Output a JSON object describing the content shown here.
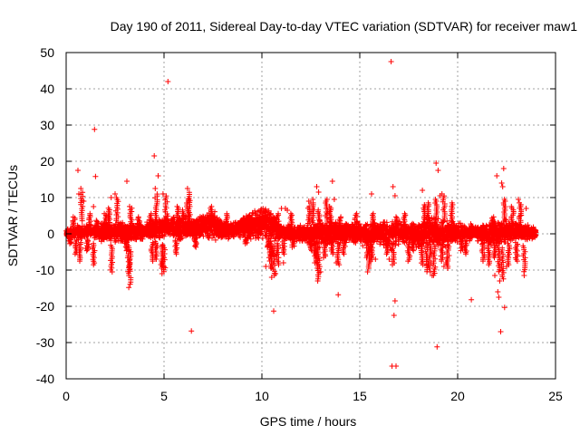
{
  "chart_data": {
    "type": "scatter",
    "title": "Day 190 of 2011, Sidereal Day-to-day VTEC variation (SDTVAR) for receiver maw1",
    "xlabel": "GPS time / hours",
    "ylabel": "SDTVAR / TECUs",
    "xlim": [
      0,
      25
    ],
    "ylim": [
      -40,
      50
    ],
    "xticks": [
      "0",
      "5",
      "10",
      "15",
      "20",
      "25"
    ],
    "yticks": [
      "50",
      "40",
      "30",
      "20",
      "10",
      "0",
      "-10",
      "-20",
      "-30",
      "-40"
    ],
    "grid": true,
    "marker": "+",
    "series_color": "#ff0000",
    "x_data_range": [
      0,
      24
    ],
    "band_envelope": [
      [
        0.0,
        -1.2,
        1.5
      ],
      [
        0.5,
        -1.5,
        2.2
      ],
      [
        1.0,
        -1.3,
        2.5
      ],
      [
        1.5,
        -1.6,
        2.8
      ],
      [
        2.0,
        -2.0,
        3.0
      ],
      [
        2.5,
        -2.2,
        2.8
      ],
      [
        3.0,
        -2.5,
        3.2
      ],
      [
        3.5,
        -2.0,
        2.6
      ],
      [
        4.0,
        -1.5,
        3.0
      ],
      [
        4.5,
        -1.8,
        4.5
      ],
      [
        5.0,
        -1.2,
        5.0
      ],
      [
        5.5,
        -1.5,
        4.5
      ],
      [
        6.0,
        -2.0,
        4.0
      ],
      [
        6.5,
        -1.5,
        4.2
      ],
      [
        7.0,
        -1.0,
        5.5
      ],
      [
        7.5,
        -1.8,
        6.0
      ],
      [
        8.0,
        -1.5,
        4.0
      ],
      [
        8.5,
        -1.2,
        3.2
      ],
      [
        9.0,
        -1.0,
        4.5
      ],
      [
        9.5,
        -1.5,
        6.5
      ],
      [
        10.0,
        -1.5,
        7.5
      ],
      [
        10.5,
        -2.5,
        7.0
      ],
      [
        11.0,
        -1.5,
        2.5
      ],
      [
        11.5,
        -2.0,
        2.2
      ],
      [
        12.0,
        -2.5,
        2.5
      ],
      [
        12.5,
        -3.0,
        3.0
      ],
      [
        13.0,
        -3.5,
        3.0
      ],
      [
        13.5,
        -3.0,
        3.5
      ],
      [
        14.0,
        -2.5,
        2.8
      ],
      [
        14.5,
        -2.0,
        3.0
      ],
      [
        15.0,
        -3.0,
        3.5
      ],
      [
        15.5,
        -3.5,
        3.0
      ],
      [
        16.0,
        -2.5,
        3.2
      ],
      [
        16.5,
        -4.5,
        3.5
      ],
      [
        17.0,
        -3.0,
        3.5
      ],
      [
        17.5,
        -2.5,
        3.0
      ],
      [
        18.0,
        -4.0,
        3.2
      ],
      [
        18.5,
        -3.0,
        4.5
      ],
      [
        19.0,
        -3.5,
        4.0
      ],
      [
        19.5,
        -3.0,
        3.5
      ],
      [
        20.0,
        -2.5,
        3.2
      ],
      [
        20.5,
        -2.0,
        2.5
      ],
      [
        21.0,
        -2.0,
        2.8
      ],
      [
        21.5,
        -2.5,
        3.0
      ],
      [
        22.0,
        -3.0,
        3.5
      ],
      [
        22.5,
        -2.5,
        3.5
      ],
      [
        23.0,
        -2.0,
        3.2
      ],
      [
        23.5,
        -1.8,
        2.8
      ],
      [
        24.0,
        -1.5,
        2.0
      ]
    ],
    "spikes": [
      [
        0.2,
        -3
      ],
      [
        0.5,
        -6
      ],
      [
        0.7,
        -8
      ],
      [
        1.1,
        -5
      ],
      [
        1.4,
        -9
      ],
      [
        2.3,
        -10.5
      ],
      [
        3.1,
        -5
      ],
      [
        3.2,
        -11
      ],
      [
        3.25,
        -14.5
      ],
      [
        4.4,
        -8
      ],
      [
        4.6,
        -7
      ],
      [
        4.9,
        -10
      ],
      [
        5.0,
        -11
      ],
      [
        5.6,
        -6
      ],
      [
        6.6,
        -4
      ],
      [
        9.2,
        -3
      ],
      [
        10.3,
        -4
      ],
      [
        10.4,
        -7
      ],
      [
        10.5,
        -10
      ],
      [
        10.6,
        -12
      ],
      [
        10.8,
        -9
      ],
      [
        11.1,
        -6
      ],
      [
        11.6,
        -4
      ],
      [
        12.5,
        -5
      ],
      [
        12.7,
        -7
      ],
      [
        12.8,
        -10
      ],
      [
        12.9,
        -13
      ],
      [
        13.2,
        -7
      ],
      [
        13.6,
        -6
      ],
      [
        13.9,
        -9
      ],
      [
        14.2,
        -6
      ],
      [
        15.4,
        -7
      ],
      [
        15.5,
        -10
      ],
      [
        15.6,
        -8
      ],
      [
        16.4,
        -6
      ],
      [
        16.7,
        -9
      ],
      [
        17.5,
        -8
      ],
      [
        17.7,
        -5
      ],
      [
        18.2,
        -9
      ],
      [
        18.4,
        -11
      ],
      [
        18.6,
        -10
      ],
      [
        18.8,
        -12
      ],
      [
        19.2,
        -8
      ],
      [
        19.5,
        -10
      ],
      [
        20.2,
        -5
      ],
      [
        20.4,
        -6
      ],
      [
        21.3,
        -8
      ],
      [
        21.6,
        -9
      ],
      [
        21.9,
        -7
      ],
      [
        22.1,
        -11
      ],
      [
        22.3,
        -13
      ],
      [
        22.6,
        -9
      ],
      [
        23.0,
        -8
      ],
      [
        23.4,
        -11
      ],
      [
        0.4,
        5
      ],
      [
        0.8,
        12
      ],
      [
        1.2,
        6
      ],
      [
        1.6,
        4
      ],
      [
        2.0,
        6
      ],
      [
        2.2,
        7.5
      ],
      [
        2.6,
        10.5
      ],
      [
        3.3,
        8
      ],
      [
        3.7,
        5
      ],
      [
        4.3,
        6
      ],
      [
        4.6,
        11.5
      ],
      [
        5.1,
        11
      ],
      [
        5.7,
        8
      ],
      [
        6.0,
        7
      ],
      [
        6.2,
        10
      ],
      [
        6.3,
        12
      ],
      [
        7.4,
        8
      ],
      [
        8.2,
        6
      ],
      [
        10.8,
        6
      ],
      [
        11.5,
        6
      ],
      [
        12.4,
        8
      ],
      [
        12.6,
        9
      ],
      [
        12.9,
        7
      ],
      [
        13.3,
        10
      ],
      [
        13.5,
        8
      ],
      [
        14.0,
        5
      ],
      [
        14.8,
        6
      ],
      [
        15.7,
        6
      ],
      [
        16.9,
        5
      ],
      [
        17.3,
        6
      ],
      [
        18.3,
        8
      ],
      [
        18.5,
        9
      ],
      [
        18.9,
        10
      ],
      [
        19.3,
        11
      ],
      [
        19.7,
        9
      ],
      [
        21.8,
        5
      ],
      [
        22.4,
        10
      ],
      [
        22.8,
        8
      ],
      [
        23.2,
        9
      ]
    ],
    "outliers": [
      [
        0.6,
        17.5
      ],
      [
        0.65,
        11
      ],
      [
        0.75,
        12.5
      ],
      [
        0.9,
        9
      ],
      [
        1.0,
        -4
      ],
      [
        1.4,
        7.5
      ],
      [
        1.45,
        28.8
      ],
      [
        1.5,
        15.8
      ],
      [
        2.3,
        10
      ],
      [
        2.5,
        11
      ],
      [
        2.35,
        -10.5
      ],
      [
        3.1,
        14.5
      ],
      [
        3.2,
        -14.8
      ],
      [
        3.3,
        -5
      ],
      [
        4.5,
        21.5
      ],
      [
        4.7,
        16
      ],
      [
        4.55,
        12.5
      ],
      [
        4.95,
        11
      ],
      [
        5.2,
        42
      ],
      [
        4.6,
        -7
      ],
      [
        4.9,
        -11
      ],
      [
        5.0,
        -9
      ],
      [
        6.2,
        12.5
      ],
      [
        6.4,
        -26.8
      ],
      [
        6.0,
        5
      ],
      [
        9.5,
        4.5
      ],
      [
        10.6,
        -21.3
      ],
      [
        10.5,
        -12
      ],
      [
        10.2,
        -9
      ],
      [
        10.4,
        -7.5
      ],
      [
        10.7,
        -11
      ],
      [
        11.0,
        7
      ],
      [
        11.2,
        7
      ],
      [
        11.3,
        6.5
      ],
      [
        11.1,
        -8
      ],
      [
        12.4,
        9
      ],
      [
        12.5,
        8.5
      ],
      [
        12.6,
        9.5
      ],
      [
        12.7,
        -8
      ],
      [
        12.8,
        13
      ],
      [
        12.9,
        11.5
      ],
      [
        13.0,
        -10.5
      ],
      [
        12.85,
        -13
      ],
      [
        13.6,
        14.5
      ],
      [
        13.7,
        9.5
      ],
      [
        13.8,
        -8
      ],
      [
        13.9,
        -16.8
      ],
      [
        15.6,
        11
      ],
      [
        15.8,
        -7
      ],
      [
        15.4,
        -10.5
      ],
      [
        16.6,
        47.5
      ],
      [
        16.7,
        13
      ],
      [
        16.8,
        10.5
      ],
      [
        16.75,
        -22.5
      ],
      [
        16.8,
        -18.5
      ],
      [
        16.65,
        -36.5
      ],
      [
        16.85,
        -36.5
      ],
      [
        16.5,
        -7
      ],
      [
        18.2,
        12
      ],
      [
        18.3,
        8
      ],
      [
        18.5,
        -8.5
      ],
      [
        18.6,
        -10.5
      ],
      [
        18.7,
        -11.5
      ],
      [
        18.9,
        19.5
      ],
      [
        19.0,
        17.5
      ],
      [
        19.1,
        10.5
      ],
      [
        19.2,
        11
      ],
      [
        18.95,
        -31.2
      ],
      [
        19.3,
        -9
      ],
      [
        19.4,
        -8
      ],
      [
        19.5,
        -7
      ],
      [
        20.7,
        -18.2
      ],
      [
        21.9,
        -11.5
      ],
      [
        22.0,
        16
      ],
      [
        22.05,
        -16
      ],
      [
        22.1,
        -17.5
      ],
      [
        22.15,
        -13
      ],
      [
        22.2,
        -27
      ],
      [
        22.25,
        14
      ],
      [
        22.3,
        13
      ],
      [
        22.35,
        18
      ],
      [
        22.4,
        -20.3
      ],
      [
        22.5,
        -9
      ],
      [
        23.1,
        9.5
      ],
      [
        23.2,
        5
      ],
      [
        23.4,
        -11.5
      ],
      [
        23.5,
        7
      ]
    ]
  }
}
